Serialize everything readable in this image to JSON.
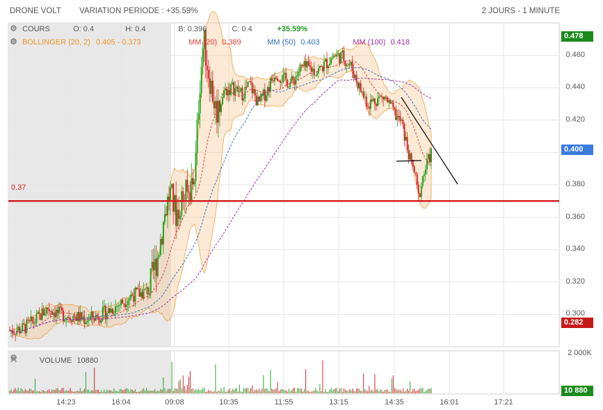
{
  "header": {
    "ticker": "DRONE VOLT",
    "variation": "VARIATION PERIODE : +35.59%",
    "period": "2 JOURS - 1 MINUTE"
  },
  "ohlc": {
    "cours": "COURS",
    "open": "O: 0.4",
    "high": "H: 0.4",
    "low": "B: 0.396",
    "close": "C: 0.4",
    "change": "+35.59%"
  },
  "indicators": {
    "bollinger": "BOLLINGER (20, 2)",
    "bollinger_values": "0.405 - 0.373",
    "mm20": "MM (20)",
    "mm20_value": "0.389",
    "mm50": "MM (50)",
    "mm50_value": "0.403",
    "mm100": "MM (100)",
    "mm100_value": "0.418"
  },
  "volume": {
    "label": "VOLUME",
    "value": "10880",
    "axis_max": "2 000K",
    "badge": "10 880"
  },
  "price_badges": {
    "high": "0.478",
    "current": "0.400",
    "low": "0.282"
  },
  "level_line": "0.37",
  "colors": {
    "up": "#22a322",
    "down": "#d8242b",
    "bollinger": "#f0a040",
    "mm20": "#e04040",
    "mm50": "#3070c0",
    "mm100": "#9c2ea0",
    "high_badge": "#1b8a1b",
    "current_badge": "#3a7be0",
    "low_badge": "#c41a1a",
    "change_text": "#1f9a1f"
  },
  "chart_data": {
    "type": "candlestick",
    "ylim": [
      0.28,
      0.48
    ],
    "y_ticks": [
      "0.460",
      "0.440",
      "0.420",
      "0.400",
      "0.380",
      "0.360",
      "0.340",
      "0.320",
      "0.300"
    ],
    "y_tick_values": [
      0.46,
      0.44,
      0.42,
      0.4,
      0.38,
      0.36,
      0.34,
      0.32,
      0.3
    ],
    "x_ticks": [
      "14:23",
      "16:04",
      "09:08",
      "10:35",
      "11:55",
      "13:15",
      "14:35",
      "16:01",
      "17:21"
    ],
    "horizontal_level": 0.37,
    "price_path": [
      [
        0,
        0.29
      ],
      [
        0.03,
        0.291
      ],
      [
        0.06,
        0.296
      ],
      [
        0.09,
        0.304
      ],
      [
        0.12,
        0.3
      ],
      [
        0.15,
        0.299
      ],
      [
        0.18,
        0.297
      ],
      [
        0.21,
        0.299
      ],
      [
        0.24,
        0.303
      ],
      [
        0.27,
        0.308
      ],
      [
        0.29,
        0.312
      ],
      [
        0.31,
        0.313
      ],
      [
        0.33,
        0.315
      ],
      [
        0.35,
        0.335
      ],
      [
        0.37,
        0.365
      ],
      [
        0.38,
        0.375
      ],
      [
        0.395,
        0.362
      ],
      [
        0.41,
        0.372
      ],
      [
        0.425,
        0.375
      ],
      [
        0.44,
        0.388
      ],
      [
        0.45,
        0.44
      ],
      [
        0.46,
        0.47
      ],
      [
        0.47,
        0.452
      ],
      [
        0.49,
        0.425
      ],
      [
        0.51,
        0.438
      ],
      [
        0.53,
        0.44
      ],
      [
        0.55,
        0.436
      ],
      [
        0.57,
        0.442
      ],
      [
        0.59,
        0.43
      ],
      [
        0.61,
        0.438
      ],
      [
        0.63,
        0.45
      ],
      [
        0.65,
        0.445
      ],
      [
        0.67,
        0.443
      ],
      [
        0.69,
        0.452
      ],
      [
        0.71,
        0.452
      ],
      [
        0.73,
        0.45
      ],
      [
        0.75,
        0.455
      ],
      [
        0.77,
        0.46
      ],
      [
        0.79,
        0.459
      ],
      [
        0.81,
        0.453
      ],
      [
        0.83,
        0.44
      ],
      [
        0.85,
        0.43
      ],
      [
        0.87,
        0.433
      ],
      [
        0.89,
        0.434
      ],
      [
        0.91,
        0.425
      ],
      [
        0.93,
        0.418
      ],
      [
        0.95,
        0.395
      ],
      [
        0.96,
        0.388
      ],
      [
        0.97,
        0.372
      ],
      [
        0.98,
        0.385
      ],
      [
        1.0,
        0.4
      ]
    ]
  }
}
